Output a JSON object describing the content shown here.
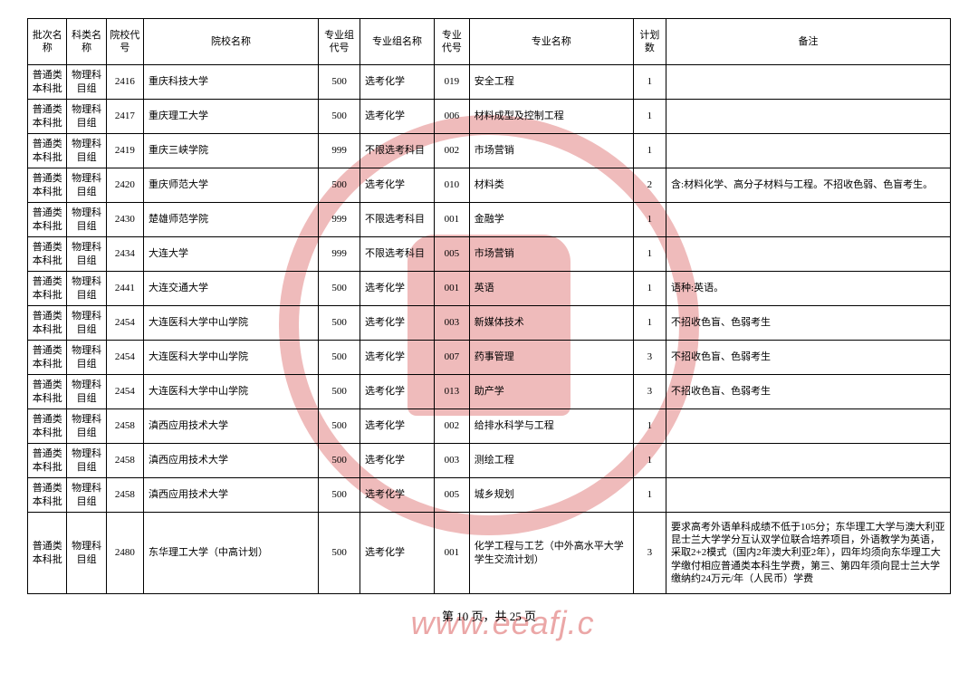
{
  "columns": [
    {
      "label": "批次名称",
      "width": "36"
    },
    {
      "label": "科类名称",
      "width": "36"
    },
    {
      "label": "院校代号",
      "width": "34"
    },
    {
      "label": "院校名称",
      "width": "160"
    },
    {
      "label": "专业组代号",
      "width": "38"
    },
    {
      "label": "专业组名称",
      "width": "68"
    },
    {
      "label": "专业代号",
      "width": "32"
    },
    {
      "label": "专业名称",
      "width": "150"
    },
    {
      "label": "计划数",
      "width": "30"
    },
    {
      "label": "备注",
      "width": "260"
    }
  ],
  "rows": [
    {
      "c": [
        "普通类本科批",
        "物理科目组",
        "2416",
        "重庆科技大学",
        "500",
        "选考化学",
        "019",
        "安全工程",
        "1",
        ""
      ]
    },
    {
      "c": [
        "普通类本科批",
        "物理科目组",
        "2417",
        "重庆理工大学",
        "500",
        "选考化学",
        "006",
        "材料成型及控制工程",
        "1",
        ""
      ]
    },
    {
      "c": [
        "普通类本科批",
        "物理科目组",
        "2419",
        "重庆三峡学院",
        "999",
        "不限选考科目",
        "002",
        "市场营销",
        "1",
        ""
      ]
    },
    {
      "c": [
        "普通类本科批",
        "物理科目组",
        "2420",
        "重庆师范大学",
        "500",
        "选考化学",
        "010",
        "材料类",
        "2",
        "含:材料化学、高分子材料与工程。不招收色弱、色盲考生。"
      ]
    },
    {
      "c": [
        "普通类本科批",
        "物理科目组",
        "2430",
        "楚雄师范学院",
        "999",
        "不限选考科目",
        "001",
        "金融学",
        "1",
        ""
      ]
    },
    {
      "c": [
        "普通类本科批",
        "物理科目组",
        "2434",
        "大连大学",
        "999",
        "不限选考科目",
        "005",
        "市场营销",
        "1",
        ""
      ]
    },
    {
      "c": [
        "普通类本科批",
        "物理科目组",
        "2441",
        "大连交通大学",
        "500",
        "选考化学",
        "001",
        "英语",
        "1",
        "语种:英语。"
      ]
    },
    {
      "c": [
        "普通类本科批",
        "物理科目组",
        "2454",
        "大连医科大学中山学院",
        "500",
        "选考化学",
        "003",
        "新媒体技术",
        "1",
        "不招收色盲、色弱考生"
      ]
    },
    {
      "c": [
        "普通类本科批",
        "物理科目组",
        "2454",
        "大连医科大学中山学院",
        "500",
        "选考化学",
        "007",
        "药事管理",
        "3",
        "不招收色盲、色弱考生"
      ]
    },
    {
      "c": [
        "普通类本科批",
        "物理科目组",
        "2454",
        "大连医科大学中山学院",
        "500",
        "选考化学",
        "013",
        "助产学",
        "3",
        "不招收色盲、色弱考生"
      ]
    },
    {
      "c": [
        "普通类本科批",
        "物理科目组",
        "2458",
        "滇西应用技术大学",
        "500",
        "选考化学",
        "002",
        "给排水科学与工程",
        "1",
        ""
      ]
    },
    {
      "c": [
        "普通类本科批",
        "物理科目组",
        "2458",
        "滇西应用技术大学",
        "500",
        "选考化学",
        "003",
        "测绘工程",
        "1",
        ""
      ]
    },
    {
      "c": [
        "普通类本科批",
        "物理科目组",
        "2458",
        "滇西应用技术大学",
        "500",
        "选考化学",
        "005",
        "城乡规划",
        "1",
        ""
      ]
    },
    {
      "c": [
        "普通类本科批",
        "物理科目组",
        "2480",
        "东华理工大学（中高计划）",
        "500",
        "选考化学",
        "001",
        "化学工程与工艺（中外高水平大学学生交流计划）",
        "3",
        "要求高考外语单科成绩不低于105分；东华理工大学与澳大利亚昆士兰大学学分互认双学位联合培养项目，外语教学为英语，采取2+2模式（国内2年澳大利亚2年），四年均须向东华理工大学缴付相应普通类本科生学费，第三、第四年须向昆士兰大学缴纳约24万元/年（人民币）学费"
      ],
      "tall": true
    }
  ],
  "pager": "第 10 页，共 25 页",
  "watermark": "www.eeafj.c"
}
